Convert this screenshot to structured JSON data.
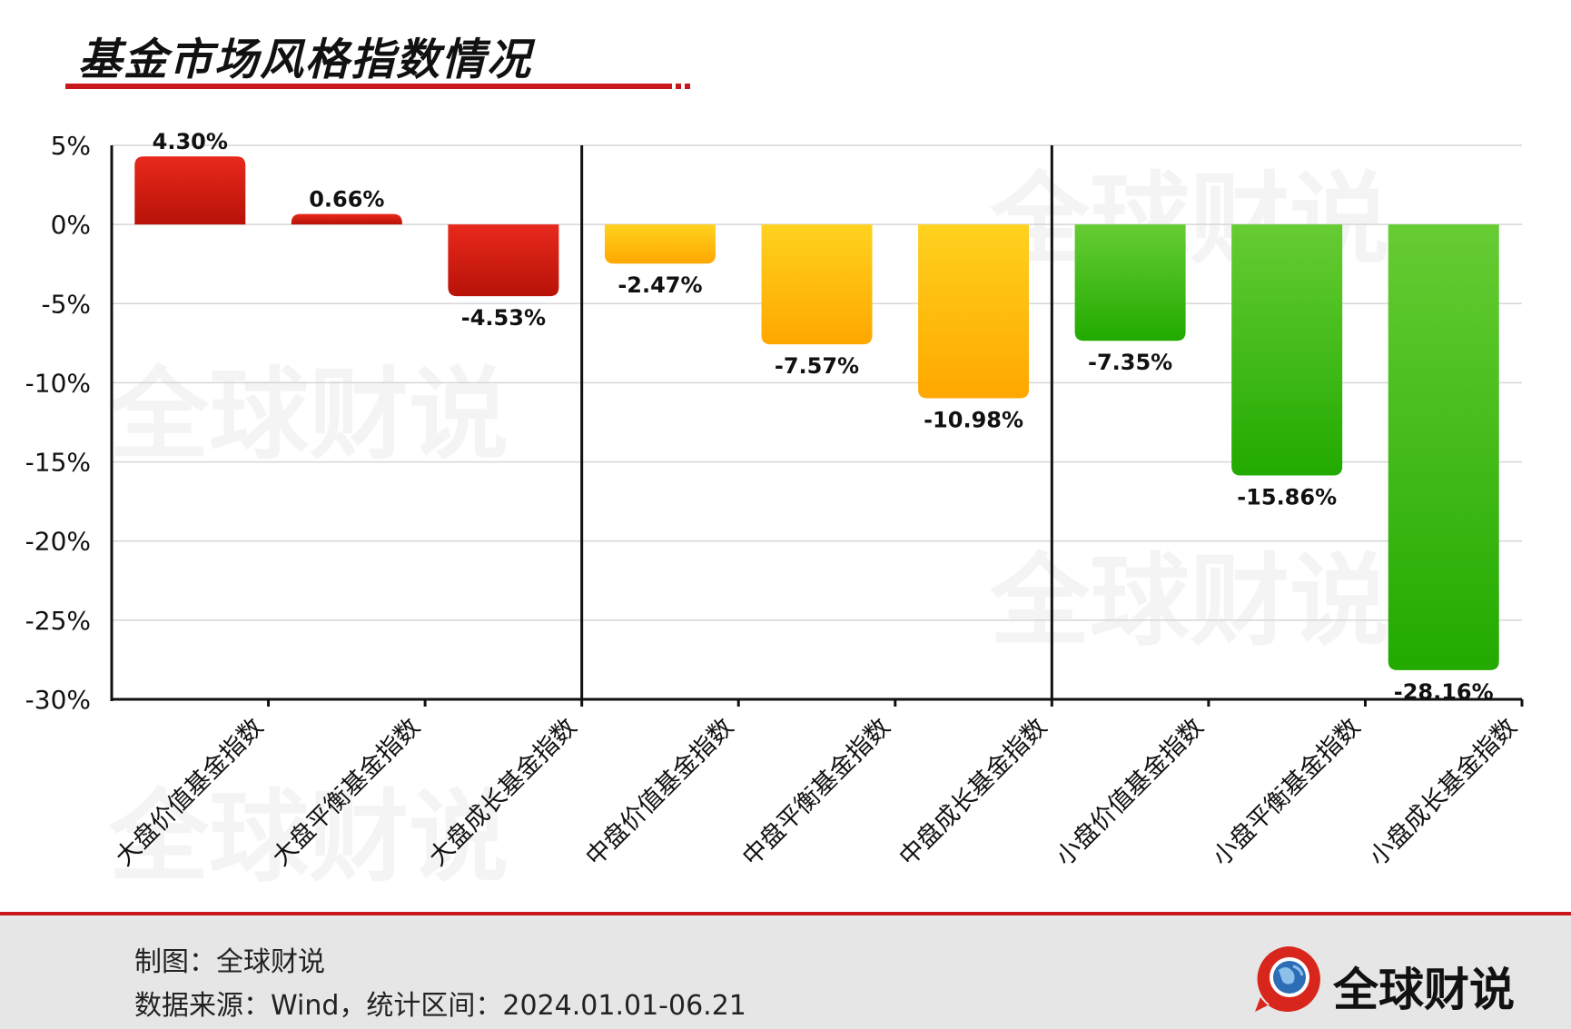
{
  "title": "基金市场风格指数情况",
  "watermark": "全球财说",
  "colors": {
    "title_bar": "#c8171d",
    "red_top": "#e8291c",
    "red_bottom": "#b81208",
    "yellow_top": "#ffd21f",
    "yellow_bottom": "#ffa700",
    "green_top": "#66cc33",
    "green_bottom": "#22aa00"
  },
  "chart_data": {
    "type": "bar",
    "title": "基金市场风格指数情况",
    "xlabel": "",
    "ylabel": "",
    "ylim": [
      -30,
      5
    ],
    "yticks": [
      "5%",
      "0%",
      "-5%",
      "-10%",
      "-15%",
      "-20%",
      "-25%",
      "-30%"
    ],
    "grid": true,
    "categories": [
      "大盘价值基金指数",
      "大盘平衡基金指数",
      "大盘成长基金指数",
      "中盘价值基金指数",
      "中盘平衡基金指数",
      "中盘成长基金指数",
      "小盘价值基金指数",
      "小盘平衡基金指数",
      "小盘成长基金指数"
    ],
    "values": [
      4.3,
      0.66,
      -4.53,
      -2.47,
      -7.57,
      -10.98,
      -7.35,
      -15.86,
      -28.16
    ],
    "labels": [
      "4.30%",
      "0.66%",
      "-4.53%",
      "-2.47%",
      "-7.57%",
      "-10.98%",
      "-7.35%",
      "-15.86%",
      "-28.16%"
    ],
    "groups": [
      {
        "color": "red",
        "members": [
          0,
          1,
          2
        ]
      },
      {
        "color": "yellow",
        "members": [
          3,
          4,
          5
        ]
      },
      {
        "color": "green",
        "members": [
          6,
          7,
          8
        ]
      }
    ]
  },
  "footer": {
    "maker": "制图：全球财说",
    "source": "数据来源：Wind，统计区间：2024.01.01-06.21"
  },
  "brand": {
    "name": "全球财说",
    "logo_icon": "globe-speech-bubble-icon"
  }
}
